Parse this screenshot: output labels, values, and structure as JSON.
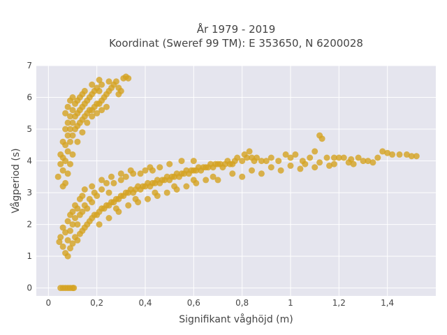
{
  "chart_data": {
    "type": "scatter",
    "title_lines": [
      "År 1979 - 2019",
      "Koordinat (Sweref 99 TM): E 353650, N 6200028"
    ],
    "xlabel": "Signifikant våghöjd (m)",
    "ylabel": "Vågperiod (s)",
    "xlim": [
      -0.05,
      1.6
    ],
    "ylim": [
      -0.25,
      7.0
    ],
    "x_ticks": [
      0,
      0.2,
      0.4,
      0.6,
      0.8,
      1,
      1.2,
      1.4
    ],
    "x_tick_labels": [
      "0",
      "0,2",
      "0,4",
      "0,6",
      "0,8",
      "1",
      "1,2",
      "1,4"
    ],
    "y_ticks": [
      0,
      1,
      2,
      3,
      4,
      5,
      6,
      7
    ],
    "y_tick_labels": [
      "0",
      "1",
      "2",
      "3",
      "4",
      "5",
      "6",
      "7"
    ],
    "grid": true,
    "background_color": "#e5e5ee",
    "marker_color": "#d4a220",
    "series": [
      {
        "points": [
          [
            0.05,
            0
          ],
          [
            0.06,
            0
          ],
          [
            0.07,
            0
          ],
          [
            0.08,
            0
          ],
          [
            0.09,
            0
          ],
          [
            0.1,
            0
          ],
          [
            0.105,
            0
          ],
          [
            0.045,
            1.45
          ],
          [
            0.05,
            1.6
          ],
          [
            0.06,
            1.3
          ],
          [
            0.06,
            1.9
          ],
          [
            0.07,
            1.1
          ],
          [
            0.07,
            1.75
          ],
          [
            0.08,
            1.0
          ],
          [
            0.08,
            1.5
          ],
          [
            0.08,
            2.1
          ],
          [
            0.09,
            1.25
          ],
          [
            0.09,
            1.8
          ],
          [
            0.09,
            2.3
          ],
          [
            0.1,
            1.4
          ],
          [
            0.1,
            2.0
          ],
          [
            0.11,
            1.6
          ],
          [
            0.11,
            2.2
          ],
          [
            0.11,
            2.6
          ],
          [
            0.12,
            1.5
          ],
          [
            0.12,
            2.0
          ],
          [
            0.12,
            2.5
          ],
          [
            0.13,
            1.7
          ],
          [
            0.13,
            2.3
          ],
          [
            0.13,
            2.8
          ],
          [
            0.14,
            1.8
          ],
          [
            0.14,
            2.4
          ],
          [
            0.15,
            1.9
          ],
          [
            0.15,
            2.6
          ],
          [
            0.15,
            3.1
          ],
          [
            0.16,
            2.0
          ],
          [
            0.16,
            2.5
          ],
          [
            0.17,
            2.1
          ],
          [
            0.17,
            2.8
          ],
          [
            0.18,
            2.2
          ],
          [
            0.18,
            2.7
          ],
          [
            0.19,
            2.3
          ],
          [
            0.19,
            3.0
          ],
          [
            0.2,
            2.3
          ],
          [
            0.2,
            2.9
          ],
          [
            0.21,
            2.4
          ],
          [
            0.22,
            2.5
          ],
          [
            0.22,
            3.1
          ],
          [
            0.23,
            2.5
          ],
          [
            0.24,
            2.6
          ],
          [
            0.24,
            3.3
          ],
          [
            0.25,
            2.6
          ],
          [
            0.25,
            3.0
          ],
          [
            0.26,
            2.7
          ],
          [
            0.27,
            2.7
          ],
          [
            0.27,
            3.3
          ],
          [
            0.28,
            2.8
          ],
          [
            0.29,
            2.8
          ],
          [
            0.3,
            2.9
          ],
          [
            0.3,
            3.4
          ],
          [
            0.31,
            2.9
          ],
          [
            0.32,
            3.0
          ],
          [
            0.32,
            3.5
          ],
          [
            0.33,
            3.0
          ],
          [
            0.34,
            3.1
          ],
          [
            0.35,
            3.0
          ],
          [
            0.35,
            3.6
          ],
          [
            0.36,
            3.1
          ],
          [
            0.37,
            3.2
          ],
          [
            0.38,
            3.1
          ],
          [
            0.38,
            3.6
          ],
          [
            0.39,
            3.2
          ],
          [
            0.4,
            3.2
          ],
          [
            0.4,
            3.7
          ],
          [
            0.41,
            3.3
          ],
          [
            0.42,
            3.2
          ],
          [
            0.43,
            3.3
          ],
          [
            0.43,
            3.7
          ],
          [
            0.44,
            3.3
          ],
          [
            0.45,
            3.4
          ],
          [
            0.46,
            3.3
          ],
          [
            0.46,
            3.8
          ],
          [
            0.47,
            3.4
          ],
          [
            0.48,
            3.4
          ],
          [
            0.49,
            3.5
          ],
          [
            0.5,
            3.4
          ],
          [
            0.5,
            3.9
          ],
          [
            0.51,
            3.5
          ],
          [
            0.52,
            3.5
          ],
          [
            0.53,
            3.6
          ],
          [
            0.54,
            3.5
          ],
          [
            0.55,
            3.6
          ],
          [
            0.55,
            4.0
          ],
          [
            0.56,
            3.6
          ],
          [
            0.57,
            3.7
          ],
          [
            0.58,
            3.6
          ],
          [
            0.59,
            3.7
          ],
          [
            0.6,
            3.7
          ],
          [
            0.6,
            4.0
          ],
          [
            0.61,
            3.7
          ],
          [
            0.62,
            3.8
          ],
          [
            0.63,
            3.7
          ],
          [
            0.64,
            3.8
          ],
          [
            0.65,
            3.8
          ],
          [
            0.66,
            3.8
          ],
          [
            0.67,
            3.9
          ],
          [
            0.68,
            3.8
          ],
          [
            0.69,
            3.9
          ],
          [
            0.7,
            3.9
          ],
          [
            0.71,
            3.9
          ],
          [
            0.72,
            3.8
          ],
          [
            0.73,
            3.9
          ],
          [
            0.74,
            4.0
          ],
          [
            0.75,
            3.9
          ],
          [
            0.76,
            3.9
          ],
          [
            0.77,
            4.0
          ],
          [
            0.78,
            4.1
          ],
          [
            0.8,
            4.0
          ],
          [
            0.81,
            4.2
          ],
          [
            0.82,
            4.1
          ],
          [
            0.83,
            4.3
          ],
          [
            0.84,
            4.1
          ],
          [
            0.85,
            4.0
          ],
          [
            0.86,
            4.1
          ],
          [
            0.88,
            4.0
          ],
          [
            0.9,
            4.0
          ],
          [
            0.92,
            4.1
          ],
          [
            0.95,
            4.0
          ],
          [
            0.98,
            4.2
          ],
          [
            1.0,
            4.1
          ],
          [
            1.02,
            4.2
          ],
          [
            1.05,
            4.0
          ],
          [
            1.08,
            4.1
          ],
          [
            1.1,
            4.3
          ],
          [
            1.12,
            4.8
          ],
          [
            1.13,
            4.7
          ],
          [
            1.15,
            4.1
          ],
          [
            1.18,
            4.1
          ],
          [
            1.2,
            4.1
          ],
          [
            1.22,
            4.1
          ],
          [
            1.25,
            4.05
          ],
          [
            1.28,
            4.1
          ],
          [
            1.32,
            4.0
          ],
          [
            1.36,
            4.1
          ],
          [
            1.38,
            4.3
          ],
          [
            1.4,
            4.25
          ],
          [
            1.42,
            4.2
          ],
          [
            1.45,
            4.2
          ],
          [
            1.48,
            4.2
          ],
          [
            1.5,
            4.15
          ],
          [
            1.52,
            4.15
          ],
          [
            0.1,
            2.4
          ],
          [
            0.14,
            2.9
          ],
          [
            0.18,
            3.2
          ],
          [
            0.22,
            3.4
          ],
          [
            0.26,
            3.5
          ],
          [
            0.3,
            3.6
          ],
          [
            0.34,
            3.7
          ],
          [
            0.42,
            3.8
          ],
          [
            0.28,
            2.5
          ],
          [
            0.36,
            2.8
          ],
          [
            0.44,
            3.0
          ],
          [
            0.52,
            3.2
          ],
          [
            0.6,
            3.4
          ],
          [
            0.68,
            3.5
          ],
          [
            0.76,
            3.6
          ],
          [
            0.84,
            3.7
          ],
          [
            0.92,
            3.8
          ],
          [
            1.0,
            3.85
          ],
          [
            1.06,
            3.9
          ],
          [
            1.12,
            3.95
          ],
          [
            1.18,
            3.9
          ],
          [
            1.24,
            3.95
          ],
          [
            1.3,
            4.0
          ],
          [
            0.7,
            3.4
          ],
          [
            0.8,
            3.5
          ],
          [
            0.88,
            3.6
          ],
          [
            0.96,
            3.7
          ],
          [
            1.04,
            3.75
          ],
          [
            1.1,
            3.8
          ],
          [
            1.16,
            3.85
          ],
          [
            1.26,
            3.9
          ],
          [
            1.34,
            3.95
          ],
          [
            0.21,
            2.0
          ],
          [
            0.25,
            2.2
          ],
          [
            0.29,
            2.4
          ],
          [
            0.33,
            2.6
          ],
          [
            0.37,
            2.7
          ],
          [
            0.41,
            2.8
          ],
          [
            0.45,
            2.9
          ],
          [
            0.49,
            3.0
          ],
          [
            0.53,
            3.1
          ],
          [
            0.57,
            3.2
          ],
          [
            0.61,
            3.3
          ],
          [
            0.65,
            3.4
          ],
          [
            0.04,
            3.5
          ],
          [
            0.05,
            3.9
          ],
          [
            0.05,
            4.2
          ],
          [
            0.06,
            3.7
          ],
          [
            0.06,
            4.1
          ],
          [
            0.06,
            4.6
          ],
          [
            0.07,
            4.0
          ],
          [
            0.07,
            4.5
          ],
          [
            0.07,
            5.0
          ],
          [
            0.07,
            5.5
          ],
          [
            0.08,
            4.3
          ],
          [
            0.08,
            4.8
          ],
          [
            0.08,
            5.2
          ],
          [
            0.08,
            5.7
          ],
          [
            0.09,
            4.6
          ],
          [
            0.09,
            5.0
          ],
          [
            0.09,
            5.4
          ],
          [
            0.09,
            5.9
          ],
          [
            0.1,
            4.8
          ],
          [
            0.1,
            5.2
          ],
          [
            0.1,
            5.6
          ],
          [
            0.1,
            6.0
          ],
          [
            0.11,
            5.0
          ],
          [
            0.11,
            5.4
          ],
          [
            0.11,
            5.8
          ],
          [
            0.12,
            5.1
          ],
          [
            0.12,
            5.5
          ],
          [
            0.12,
            5.9
          ],
          [
            0.13,
            5.2
          ],
          [
            0.13,
            5.6
          ],
          [
            0.13,
            6.0
          ],
          [
            0.14,
            5.3
          ],
          [
            0.14,
            5.7
          ],
          [
            0.14,
            6.1
          ],
          [
            0.15,
            5.4
          ],
          [
            0.15,
            5.8
          ],
          [
            0.15,
            6.2
          ],
          [
            0.16,
            5.5
          ],
          [
            0.16,
            5.9
          ],
          [
            0.17,
            5.6
          ],
          [
            0.17,
            6.0
          ],
          [
            0.18,
            5.6
          ],
          [
            0.18,
            6.1
          ],
          [
            0.19,
            5.7
          ],
          [
            0.19,
            6.2
          ],
          [
            0.2,
            5.8
          ],
          [
            0.2,
            6.3
          ],
          [
            0.21,
            5.8
          ],
          [
            0.21,
            6.2
          ],
          [
            0.22,
            5.9
          ],
          [
            0.22,
            6.4
          ],
          [
            0.23,
            6.0
          ],
          [
            0.24,
            6.1
          ],
          [
            0.25,
            6.2
          ],
          [
            0.26,
            6.3
          ],
          [
            0.27,
            6.4
          ],
          [
            0.28,
            6.5
          ],
          [
            0.29,
            6.3
          ],
          [
            0.3,
            6.2
          ],
          [
            0.31,
            6.6
          ],
          [
            0.32,
            6.65
          ],
          [
            0.33,
            6.6
          ],
          [
            0.29,
            6.1
          ],
          [
            0.25,
            6.5
          ],
          [
            0.21,
            6.55
          ],
          [
            0.18,
            6.4
          ],
          [
            0.07,
            3.3
          ],
          [
            0.06,
            3.2
          ],
          [
            0.08,
            3.6
          ],
          [
            0.09,
            3.9
          ],
          [
            0.1,
            4.2
          ],
          [
            0.12,
            4.6
          ],
          [
            0.14,
            4.9
          ],
          [
            0.16,
            5.2
          ],
          [
            0.18,
            5.4
          ],
          [
            0.2,
            5.5
          ],
          [
            0.22,
            5.6
          ],
          [
            0.24,
            5.7
          ]
        ]
      }
    ]
  }
}
